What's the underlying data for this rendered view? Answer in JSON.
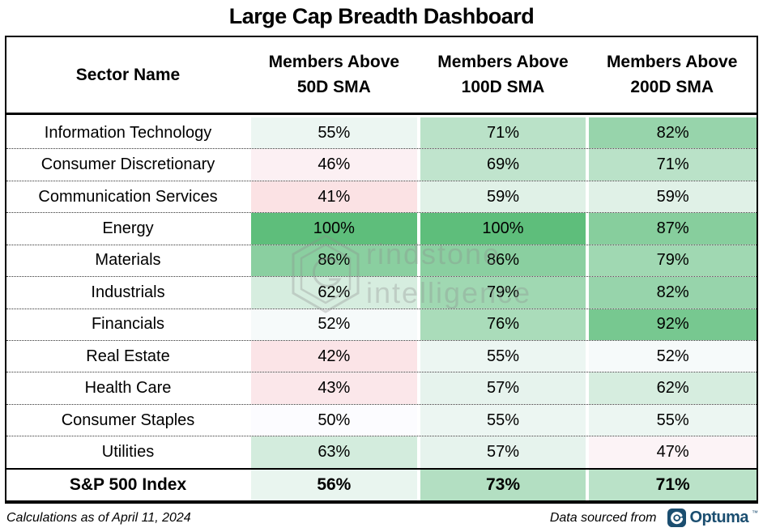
{
  "title": "Large Cap Breadth Dashboard",
  "table": {
    "headers": [
      {
        "label": "Sector Name"
      },
      {
        "line1": "Members Above",
        "line2": "50D SMA"
      },
      {
        "line1": "Members Above",
        "line2": "100D SMA"
      },
      {
        "line1": "Members Above",
        "line2": "200D SMA"
      }
    ]
  },
  "chart_data": {
    "type": "table",
    "title": "Large Cap Breadth Dashboard",
    "columns": [
      "Sector Name",
      "Members Above 50D SMA",
      "Members Above 100D SMA",
      "Members Above 200D SMA"
    ],
    "value_format": "percent",
    "rows": [
      {
        "name": "Information Technology",
        "values": [
          55,
          71,
          82
        ]
      },
      {
        "name": "Consumer Discretionary",
        "values": [
          46,
          69,
          71
        ]
      },
      {
        "name": "Communication Services",
        "values": [
          41,
          59,
          59
        ]
      },
      {
        "name": "Energy",
        "values": [
          100,
          100,
          87
        ]
      },
      {
        "name": "Materials",
        "values": [
          86,
          86,
          79
        ]
      },
      {
        "name": "Industrials",
        "values": [
          62,
          79,
          82
        ]
      },
      {
        "name": "Financials",
        "values": [
          52,
          76,
          92
        ]
      },
      {
        "name": "Real Estate",
        "values": [
          42,
          55,
          52
        ]
      },
      {
        "name": "Health Care",
        "values": [
          43,
          57,
          62
        ]
      },
      {
        "name": "Consumer Staples",
        "values": [
          50,
          55,
          55
        ]
      },
      {
        "name": "Utilities",
        "values": [
          63,
          57,
          47
        ]
      }
    ],
    "index_row": {
      "name": "S&P 500 Index",
      "values": [
        56,
        73,
        71
      ]
    },
    "color_scale": {
      "min_value": 0,
      "mid_value": 50,
      "max_value": 100
    }
  },
  "colors": {
    "scale_min_red": "#F8696B",
    "scale_mid_white": "#FCFCFF",
    "scale_max_green": "#5EBE7B",
    "optuma_navy": "#1B4E70",
    "watermark_gray": "#8D8D8D"
  },
  "watermark": {
    "brand": "Grindstone Intelligence",
    "line1": "rindstone",
    "line2": "intelligence"
  },
  "footer": {
    "left": "Calculations as of April 11, 2024",
    "right": "Data sourced from",
    "logo_text": "Optuma",
    "trademark": "™"
  }
}
